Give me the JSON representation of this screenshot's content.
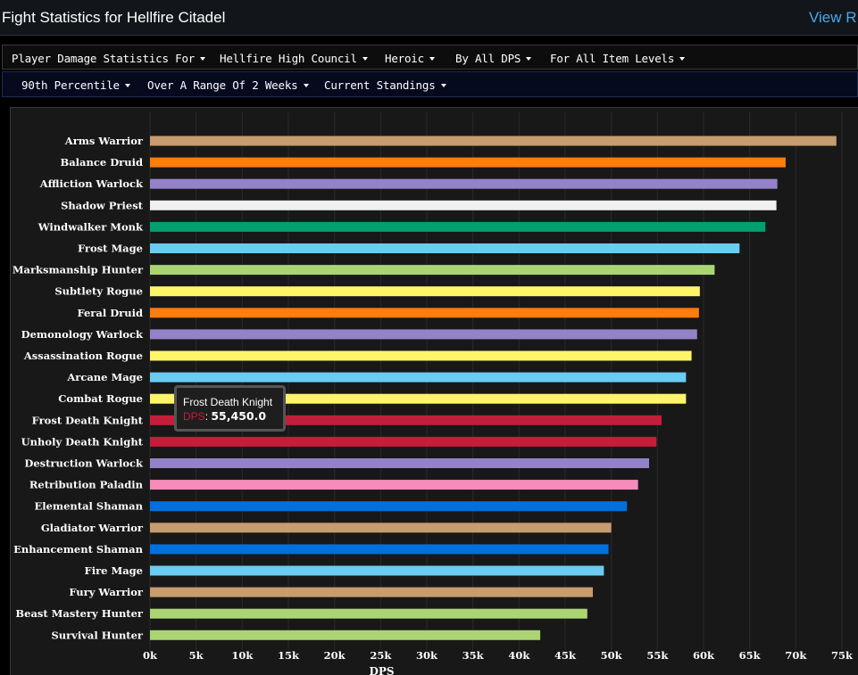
{
  "header": {
    "title": "Fight Statistics for Hellfire Citadel",
    "link": "View R"
  },
  "filters_row1": [
    {
      "label": "Player Damage Statistics For"
    },
    {
      "label": "Hellfire High Council"
    },
    {
      "label": "Heroic"
    },
    {
      "label": "By All DPS"
    },
    {
      "label": "For All Item Levels"
    }
  ],
  "filters_row2": [
    {
      "label": "90th Percentile"
    },
    {
      "label": "Over A Range Of 2 Weeks"
    },
    {
      "label": "Current Standings"
    }
  ],
  "tooltip": {
    "name": "Frost Death Knight",
    "key": "DPS",
    "value": "55,450.0"
  },
  "chart_data": {
    "type": "bar",
    "orientation": "horizontal",
    "xlabel": "DPS",
    "xlim": [
      0,
      75000
    ],
    "x_ticks": [
      "0k",
      "5k",
      "10k",
      "15k",
      "20k",
      "25k",
      "30k",
      "35k",
      "40k",
      "45k",
      "50k",
      "55k",
      "60k",
      "65k",
      "70k",
      "75k"
    ],
    "grid": true,
    "categories": [
      "Arms Warrior",
      "Balance Druid",
      "Affliction Warlock",
      "Shadow Priest",
      "Windwalker Monk",
      "Frost Mage",
      "Marksmanship Hunter",
      "Subtlety Rogue",
      "Feral Druid",
      "Demonology Warlock",
      "Assassination Rogue",
      "Arcane Mage",
      "Combat Rogue",
      "Frost Death Knight",
      "Unholy Death Knight",
      "Destruction Warlock",
      "Retribution Paladin",
      "Elemental Shaman",
      "Gladiator Warrior",
      "Enhancement Shaman",
      "Fire Mage",
      "Fury Warrior",
      "Beast Mastery Hunter",
      "Survival Hunter"
    ],
    "values": [
      74400,
      68900,
      68000,
      67900,
      66700,
      63900,
      61200,
      59600,
      59500,
      59300,
      58700,
      58100,
      58100,
      55450,
      54900,
      54100,
      52900,
      51700,
      50000,
      49700,
      49200,
      48000,
      47400,
      42300
    ],
    "colors": [
      "#C79C6E",
      "#FF7D0A",
      "#9482C9",
      "#F0F0F0",
      "#00A070",
      "#69CCF0",
      "#ABD473",
      "#FFF569",
      "#FF7D0A",
      "#9482C9",
      "#FFF569",
      "#69CCF0",
      "#FFF569",
      "#C41E3A",
      "#C41E3A",
      "#9482C9",
      "#F58CBA",
      "#0070DE",
      "#C79C6E",
      "#0070DE",
      "#69CCF0",
      "#C79C6E",
      "#ABD473",
      "#ABD473"
    ]
  }
}
